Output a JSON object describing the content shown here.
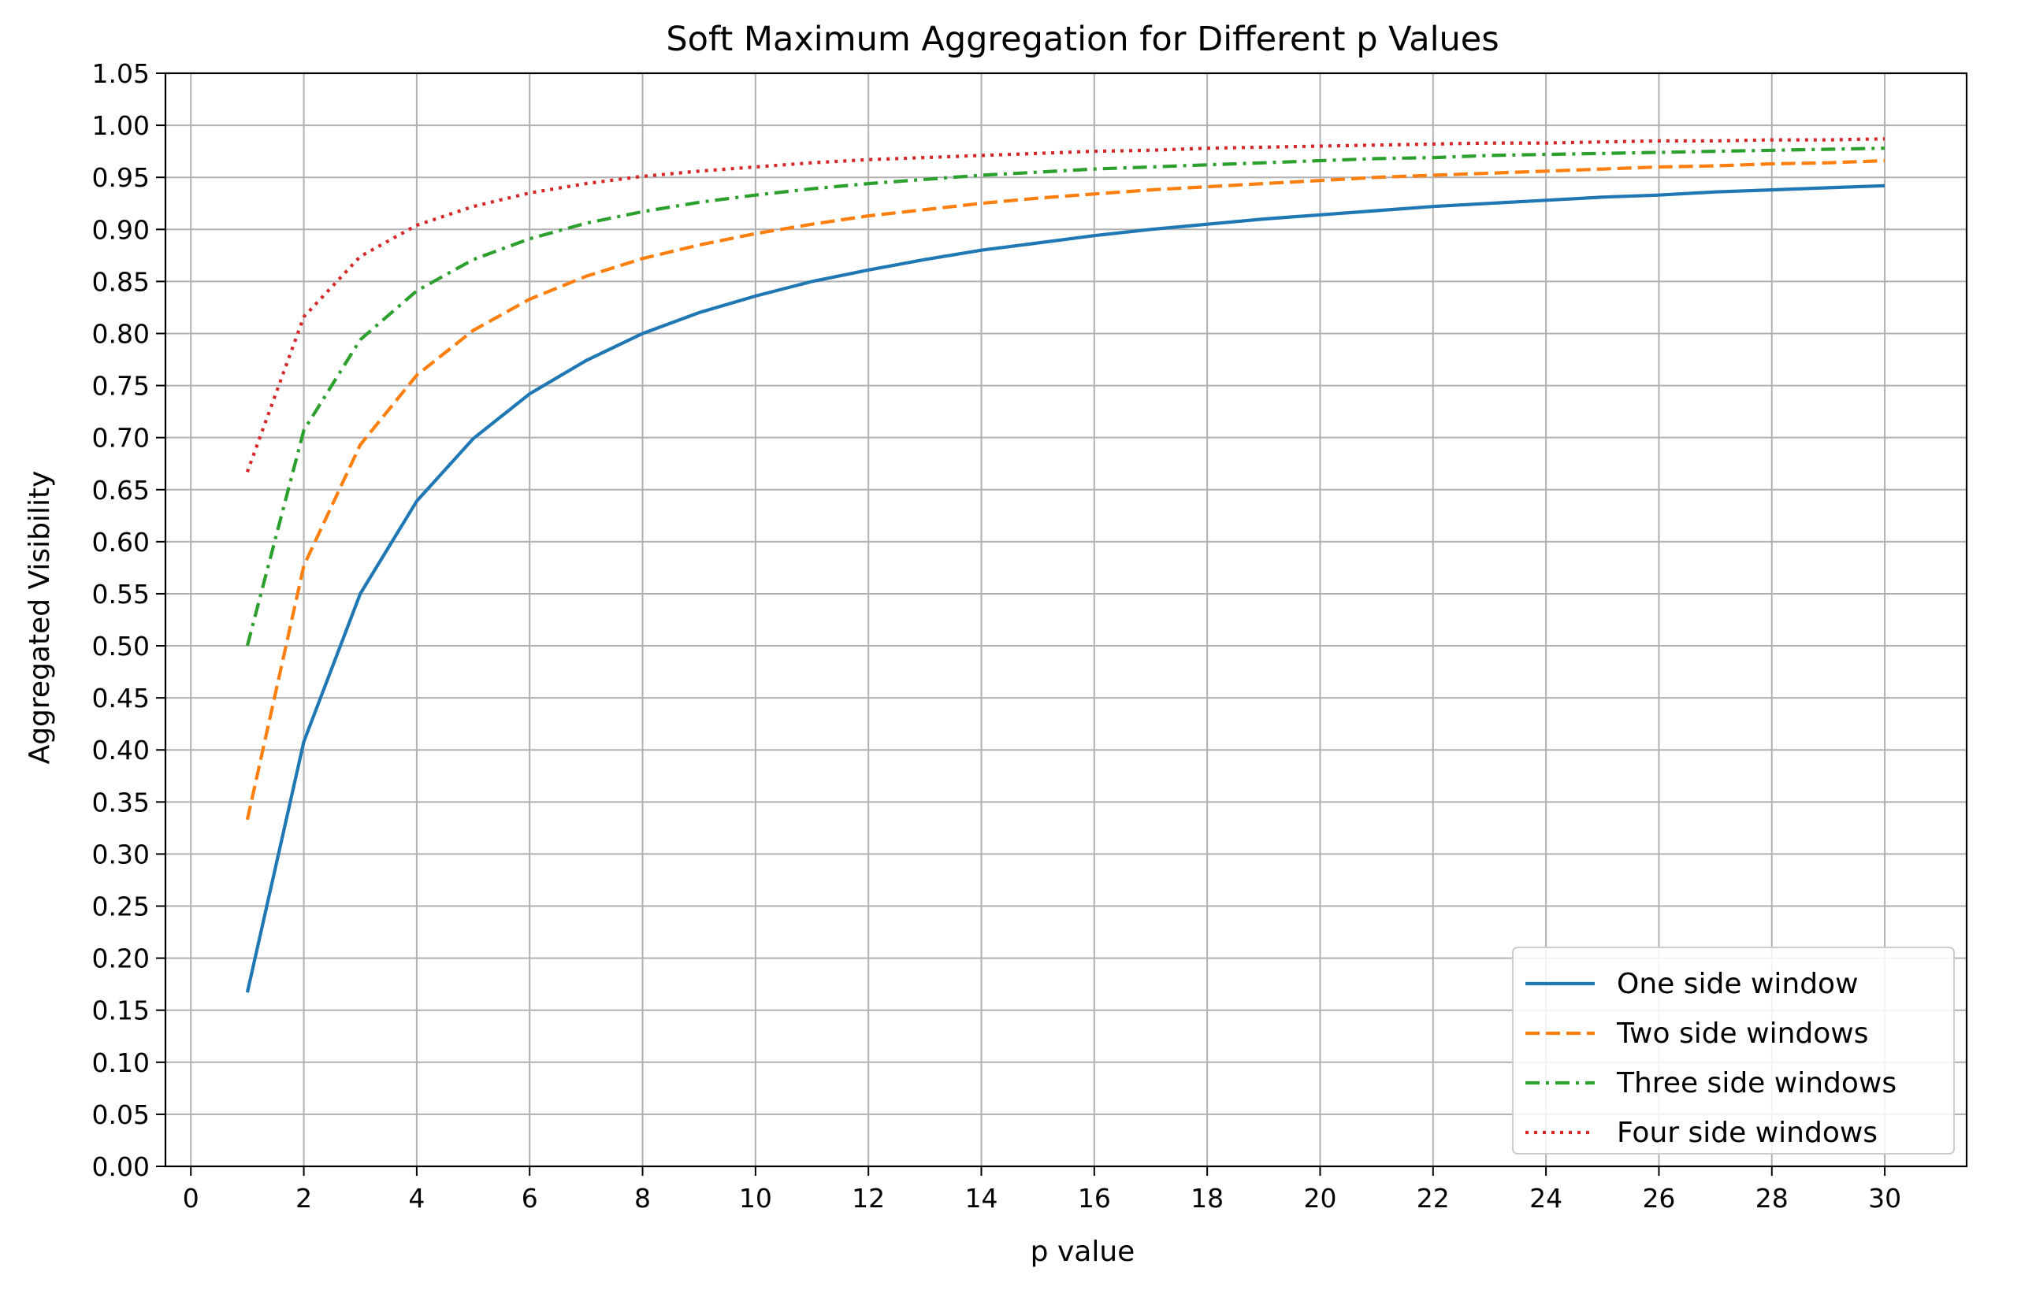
{
  "chart_data": {
    "type": "line",
    "title": "Soft Maximum Aggregation for Different p Values",
    "xlabel": "p value",
    "ylabel": "Aggregated Visibility",
    "xlim": [
      -0.45,
      31.45
    ],
    "ylim": [
      0.0,
      1.05
    ],
    "x_ticks": [
      0,
      2,
      4,
      6,
      8,
      10,
      12,
      14,
      16,
      18,
      20,
      22,
      24,
      26,
      28,
      30
    ],
    "y_ticks": [
      0.0,
      0.05,
      0.1,
      0.15,
      0.2,
      0.25,
      0.3,
      0.35,
      0.4,
      0.45,
      0.5,
      0.55,
      0.6,
      0.65,
      0.7,
      0.75,
      0.8,
      0.85,
      0.9,
      0.95,
      1.0,
      1.05
    ],
    "grid": true,
    "legend_position": "lower right",
    "x": [
      1,
      2,
      3,
      4,
      5,
      6,
      7,
      8,
      9,
      10,
      11,
      12,
      13,
      14,
      15,
      16,
      17,
      18,
      19,
      20,
      21,
      22,
      23,
      24,
      25,
      26,
      27,
      28,
      29,
      30
    ],
    "series": [
      {
        "name": "One side window",
        "color": "#1f77b4",
        "dash": "solid",
        "values": [
          0.167,
          0.408,
          0.55,
          0.639,
          0.699,
          0.742,
          0.774,
          0.8,
          0.82,
          0.836,
          0.85,
          0.861,
          0.871,
          0.88,
          0.887,
          0.894,
          0.9,
          0.905,
          0.91,
          0.914,
          0.918,
          0.922,
          0.925,
          0.928,
          0.931,
          0.933,
          0.936,
          0.938,
          0.94,
          0.942
        ]
      },
      {
        "name": "Two side windows",
        "color": "#ff7f0e",
        "dash": "dashed",
        "values": [
          0.333,
          0.577,
          0.693,
          0.76,
          0.803,
          0.833,
          0.855,
          0.872,
          0.885,
          0.896,
          0.905,
          0.913,
          0.919,
          0.925,
          0.93,
          0.934,
          0.938,
          0.941,
          0.944,
          0.947,
          0.95,
          0.952,
          0.954,
          0.956,
          0.958,
          0.96,
          0.961,
          0.963,
          0.964,
          0.966
        ]
      },
      {
        "name": "Three side windows",
        "color": "#2ca02c",
        "dash": "dashdot",
        "values": [
          0.5,
          0.707,
          0.794,
          0.841,
          0.871,
          0.891,
          0.906,
          0.917,
          0.926,
          0.933,
          0.939,
          0.944,
          0.948,
          0.952,
          0.955,
          0.958,
          0.96,
          0.962,
          0.964,
          0.966,
          0.968,
          0.969,
          0.971,
          0.972,
          0.973,
          0.974,
          0.975,
          0.976,
          0.977,
          0.978
        ]
      },
      {
        "name": "Four side windows",
        "color": "#d62728",
        "dash": "dotted",
        "values": [
          0.667,
          0.816,
          0.874,
          0.904,
          0.922,
          0.935,
          0.944,
          0.951,
          0.956,
          0.96,
          0.964,
          0.967,
          0.969,
          0.971,
          0.973,
          0.975,
          0.976,
          0.978,
          0.979,
          0.98,
          0.981,
          0.982,
          0.983,
          0.983,
          0.984,
          0.985,
          0.985,
          0.986,
          0.986,
          0.987
        ]
      }
    ]
  }
}
